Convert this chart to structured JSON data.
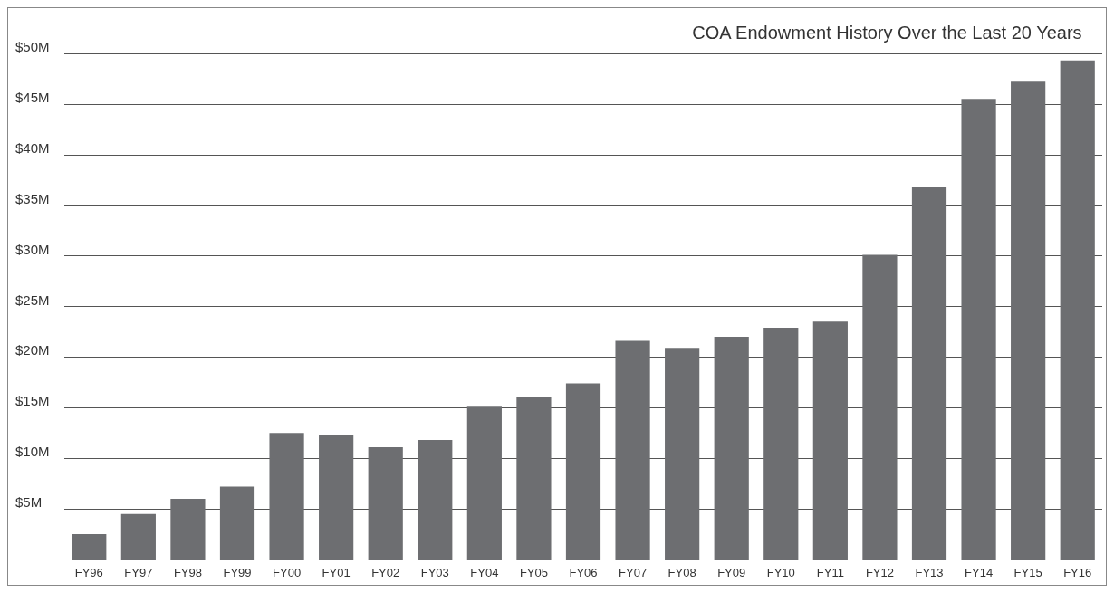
{
  "chart_data": {
    "type": "bar",
    "title": "COA Endowment History Over the Last 20 Years",
    "categories": [
      "FY96",
      "FY97",
      "FY98",
      "FY99",
      "FY00",
      "FY01",
      "FY02",
      "FY03",
      "FY04",
      "FY05",
      "FY06",
      "FY07",
      "FY08",
      "FY09",
      "FY10",
      "FY11",
      "FY12",
      "FY13",
      "FY14",
      "FY15",
      "FY16"
    ],
    "values": [
      2.5,
      4.5,
      6.0,
      7.2,
      12.5,
      12.3,
      11.1,
      11.8,
      15.1,
      16.0,
      17.4,
      21.6,
      20.9,
      22.0,
      22.9,
      23.5,
      30.1,
      36.8,
      45.5,
      47.2,
      49.3
    ],
    "color": "#6d6e71",
    "ylim": [
      0,
      50
    ],
    "yticks": [
      {
        "value": 5,
        "label": "$5M"
      },
      {
        "value": 10,
        "label": "$10M"
      },
      {
        "value": 15,
        "label": "$15M"
      },
      {
        "value": 20,
        "label": "$20M"
      },
      {
        "value": 25,
        "label": "$25M"
      },
      {
        "value": 30,
        "label": "$30M"
      },
      {
        "value": 35,
        "label": "$35M"
      },
      {
        "value": 40,
        "label": "$40M"
      },
      {
        "value": 45,
        "label": "$45M"
      },
      {
        "value": 50,
        "label": "$50M"
      }
    ],
    "grid": "y"
  }
}
